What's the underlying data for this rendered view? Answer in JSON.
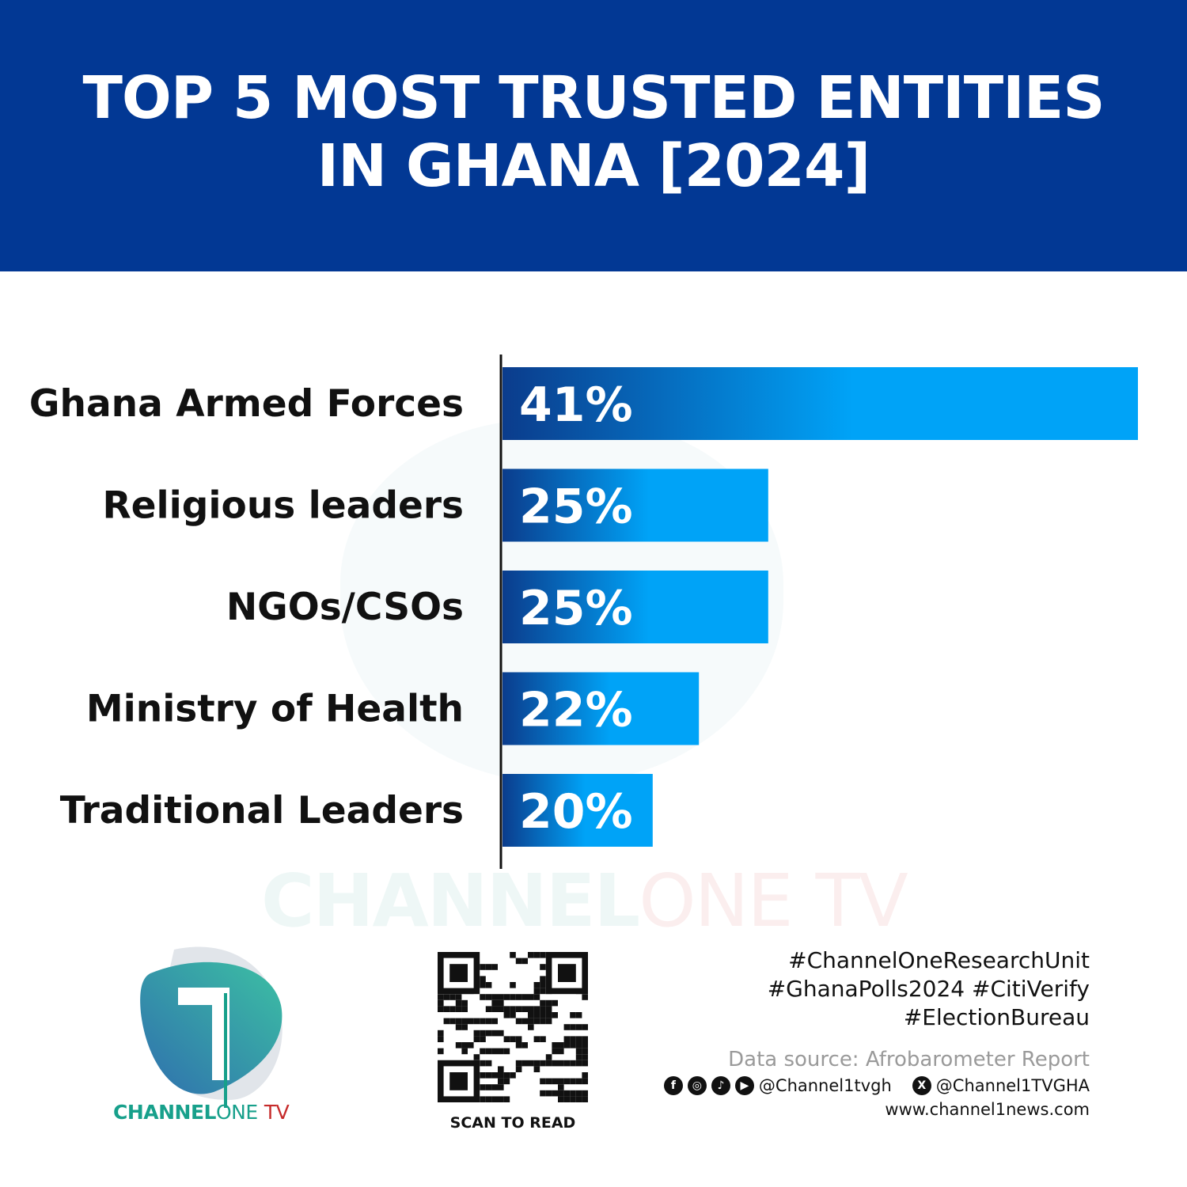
{
  "header": {
    "title_line1": "TOP 5 MOST TRUSTED ENTITIES",
    "title_line2": "IN GHANA [2024]"
  },
  "chart_data": {
    "type": "bar",
    "orientation": "horizontal",
    "title": "TOP 5 MOST TRUSTED ENTITIES IN GHANA [2024]",
    "categories": [
      "Ghana Armed Forces",
      "Religious leaders",
      "NGOs/CSOs",
      "Ministry of Health",
      "Traditional Leaders"
    ],
    "values": [
      41,
      25,
      25,
      22,
      20
    ],
    "value_labels": [
      "41%",
      "25%",
      "25%",
      "22%",
      "20%"
    ],
    "unit": "%",
    "grid": false,
    "legend": "none",
    "bar_gradient": [
      "#0b3c8c",
      "#00a3f7"
    ]
  },
  "watermark": {
    "brand": "CHANNEL",
    "brand2": "ONE",
    "brand3": "TV"
  },
  "logo": {
    "text1": "CHANNEL",
    "text2": "ONE",
    "text3": "TV",
    "colors": [
      "#17a08b",
      "#c62b2b"
    ]
  },
  "qr": {
    "caption": "SCAN TO READ"
  },
  "footer": {
    "tags_line1": "#ChannelOneResearchUnit",
    "tags_line2": "#GhanaPolls2024 #CitiVerify",
    "tags_line3": "#ElectionBureau",
    "source": "Data source: Afrobarometer Report",
    "social_handle": "@Channel1tvgh",
    "x_handle": "@Channel1TVGHA",
    "website": "www.channel1news.com",
    "social_icons": [
      "facebook-icon",
      "instagram-icon",
      "tiktok-icon",
      "youtube-icon",
      "x-icon"
    ]
  }
}
